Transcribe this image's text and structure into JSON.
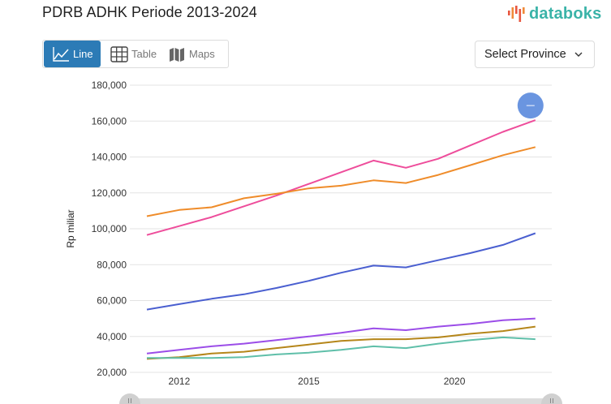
{
  "header": {
    "title": "PDRB ADHK Periode 2013-2024",
    "logo_text": "databoks",
    "logo_icon": "bars-logo-icon"
  },
  "view_toggle": {
    "options": [
      {
        "label": "Line",
        "icon": "line-chart-icon",
        "active": true
      },
      {
        "label": "Table",
        "icon": "table-grid-icon",
        "active": false
      },
      {
        "label": "Maps",
        "icon": "map-icon",
        "active": false
      }
    ]
  },
  "province_select": {
    "label": "Select Province",
    "icon": "chevron-down-icon"
  },
  "colors": {
    "accent": "#2c7bb6",
    "logo_teal": "#3ab3a8",
    "logo_bars": "#e8573f"
  },
  "chart_data": {
    "type": "line",
    "title": "PDRB ADHK Periode 2013-2024",
    "xlabel": "",
    "ylabel": "Rp miliar",
    "ylim": [
      20000,
      180000
    ],
    "y_ticks": [
      20000,
      40000,
      60000,
      80000,
      100000,
      120000,
      140000,
      160000,
      180000
    ],
    "y_tick_labels": [
      "20,000",
      "40,000",
      "60,000",
      "80,000",
      "100,000",
      "120,000",
      "140,000",
      "160,000",
      "180,000"
    ],
    "x_tick_labels": [
      {
        "label": "2012",
        "at_index": 1
      },
      {
        "label": "2015",
        "at_index": 5
      },
      {
        "label": "2020",
        "at_index": 9.5
      }
    ],
    "point_count": 13,
    "grid": true,
    "legend": "none",
    "series": [
      {
        "name": "series-pink",
        "color": "#ee4d9b",
        "values": [
          96500,
          101500,
          106500,
          112500,
          118500,
          125000,
          131500,
          138000,
          134000,
          139000,
          146500,
          154000,
          160500
        ]
      },
      {
        "name": "series-orange",
        "color": "#ef8c2a",
        "values": [
          107000,
          110500,
          112000,
          117000,
          119500,
          122500,
          124000,
          127000,
          125500,
          130000,
          135500,
          141000,
          145500
        ]
      },
      {
        "name": "series-blue",
        "color": "#4a5fd0",
        "values": [
          55000,
          58000,
          61000,
          63500,
          67000,
          71000,
          75500,
          79500,
          78500,
          82500,
          86500,
          91000,
          97500
        ]
      },
      {
        "name": "series-purple",
        "color": "#9b4de8",
        "values": [
          30500,
          32500,
          34500,
          36000,
          38000,
          40000,
          42000,
          44500,
          43500,
          45500,
          47000,
          49000,
          50000
        ]
      },
      {
        "name": "series-gold",
        "color": "#b5861a",
        "values": [
          27500,
          28500,
          30500,
          31500,
          33500,
          35500,
          37500,
          38500,
          38500,
          39500,
          41500,
          43000,
          45500
        ]
      },
      {
        "name": "series-teal",
        "color": "#5fbfa9",
        "values": [
          28000,
          28000,
          28000,
          28500,
          30000,
          31000,
          32500,
          34500,
          33500,
          36000,
          38000,
          39500,
          38500
        ]
      }
    ],
    "range_slider": {
      "start": 0,
      "end": 1
    },
    "hover_marker": {
      "series": "series-pink",
      "index": 12,
      "color": "#6a95e0",
      "icon": "minus-icon"
    }
  }
}
